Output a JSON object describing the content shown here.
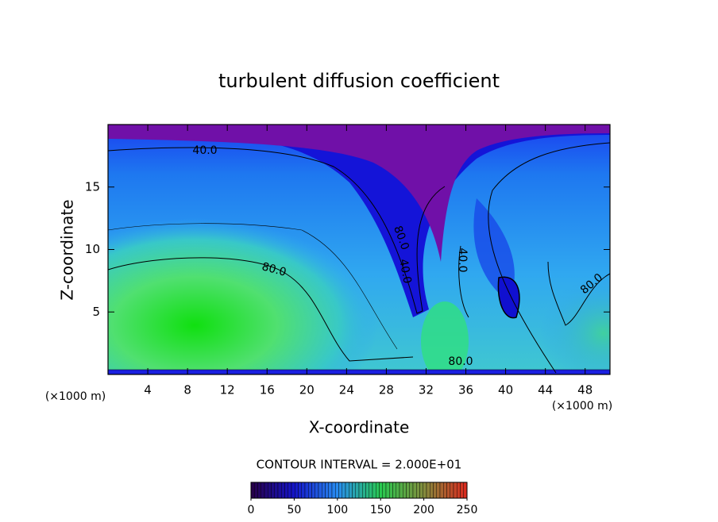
{
  "chart_data": {
    "type": "contour",
    "title": "turbulent diffusion coefficient",
    "x_label": "X-coordinate",
    "y_label": "Z-coordinate",
    "x_unit": "(×1000 m)",
    "y_unit": "(×1000 m)",
    "xlim": [
      0,
      50.5
    ],
    "xticks": [
      4,
      8,
      12,
      16,
      20,
      24,
      28,
      32,
      36,
      40,
      44,
      48
    ],
    "ylim": [
      0,
      20
    ],
    "yticks": [
      5,
      10,
      15
    ],
    "contour_labels": [
      "40.0",
      "80.0",
      "80.0",
      "40.0",
      "40.0",
      "80.0",
      "80.0"
    ],
    "contour_interval": "CONTOUR INTERVAL = 2.000E+01",
    "colorbar": {
      "lim": [
        0,
        250
      ],
      "ticks": [
        0,
        50,
        100,
        150,
        200,
        250
      ]
    }
  }
}
